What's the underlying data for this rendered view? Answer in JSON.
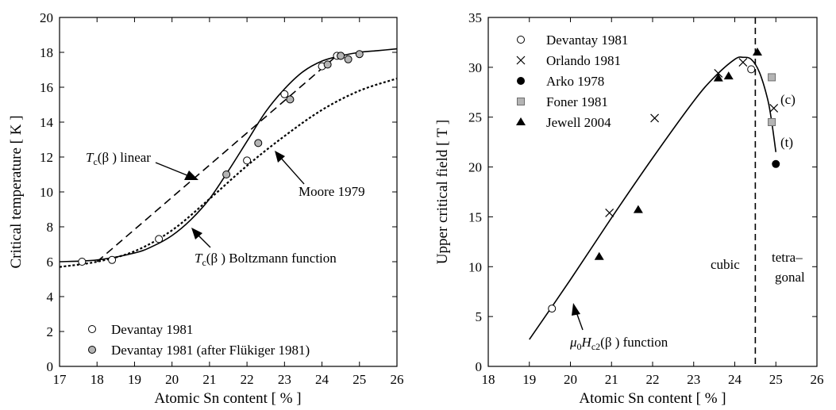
{
  "chart_data": [
    {
      "type": "scatter",
      "xlabel": "Atomic Sn content [ % ]",
      "ylabel": "Critical temperature [ K ]",
      "xlim": [
        17,
        26
      ],
      "ylim": [
        0,
        20
      ],
      "xticks": [
        "17",
        "18",
        "19",
        "20",
        "21",
        "22",
        "23",
        "24",
        "25",
        "26"
      ],
      "yticks": [
        "0",
        "2",
        "4",
        "6",
        "8",
        "10",
        "12",
        "14",
        "16",
        "18",
        "20"
      ],
      "legend_position": "bottom-left",
      "series": [
        {
          "name": "Devantay 1981",
          "marker": "open-circle",
          "x": [
            17.6,
            18.4,
            19.65,
            22.0,
            23.0,
            24.0,
            24.4,
            24.5
          ],
          "y": [
            6.0,
            6.1,
            7.3,
            11.8,
            15.6,
            17.2,
            17.8,
            17.8
          ]
        },
        {
          "name": "Devantay 1981 (after Flükiger 1981)",
          "marker": "gray-circle",
          "x": [
            21.45,
            22.3,
            23.15,
            24.15,
            24.5,
            24.7,
            25.0
          ],
          "y": [
            11.0,
            12.8,
            15.3,
            17.3,
            17.8,
            17.6,
            17.9
          ]
        }
      ],
      "curves": [
        {
          "label": "Tc(β) linear",
          "style": "dashed",
          "x": [
            18.0,
            24.5
          ],
          "y": [
            6.0,
            18.0
          ]
        },
        {
          "label": "Moore 1979",
          "style": "dotted",
          "x": [
            17.0,
            18.0,
            19.0,
            20.0,
            21.0,
            22.0,
            23.0,
            24.0,
            25.0,
            26.0
          ],
          "y": [
            5.7,
            6.0,
            6.6,
            7.8,
            9.6,
            11.5,
            13.2,
            14.7,
            15.8,
            16.5
          ]
        },
        {
          "label": "Tc(β) Boltzmann function",
          "style": "solid",
          "x": [
            17.0,
            18.0,
            19.0,
            19.5,
            20.0,
            20.5,
            21.0,
            21.5,
            22.0,
            22.5,
            23.0,
            23.5,
            24.0,
            24.5,
            25.0,
            25.5,
            26.0
          ],
          "y": [
            6.0,
            6.1,
            6.5,
            6.9,
            7.5,
            8.4,
            9.6,
            11.2,
            12.9,
            14.6,
            15.9,
            16.9,
            17.5,
            17.8,
            18.0,
            18.1,
            18.2
          ]
        }
      ],
      "annotations": [
        {
          "prefix": "T",
          "sub": "c",
          "suffix": "(β ) linear"
        },
        {
          "prefix": "",
          "sub": "",
          "suffix": "Moore 1979"
        },
        {
          "prefix": "T",
          "sub": "c",
          "suffix": "(β ) Boltzmann function"
        }
      ]
    },
    {
      "type": "scatter",
      "xlabel": "Atomic Sn content [ % ]",
      "ylabel": "Upper critical field [ T ]",
      "xlim": [
        18,
        26
      ],
      "ylim": [
        0,
        35
      ],
      "xticks": [
        "18",
        "19",
        "20",
        "21",
        "22",
        "23",
        "24",
        "25",
        "26"
      ],
      "yticks": [
        "0",
        "5",
        "10",
        "15",
        "20",
        "25",
        "30",
        "35"
      ],
      "legend_position": "top-left",
      "series": [
        {
          "name": "Devantay 1981",
          "marker": "open-circle",
          "x": [
            19.55,
            24.4
          ],
          "y": [
            5.8,
            29.8
          ]
        },
        {
          "name": "Orlando 1981",
          "marker": "cross",
          "x": [
            20.95,
            22.05,
            23.6,
            24.2,
            24.95
          ],
          "y": [
            15.4,
            24.9,
            29.4,
            30.5,
            25.9
          ]
        },
        {
          "name": "Arko 1978",
          "marker": "filled-circle",
          "x": [
            25.0
          ],
          "y": [
            20.3
          ]
        },
        {
          "name": "Foner 1981",
          "marker": "gray-square",
          "x": [
            24.9,
            24.9
          ],
          "y": [
            29.0,
            24.5
          ]
        },
        {
          "name": "Jewell 2004",
          "marker": "filled-triangle",
          "x": [
            20.7,
            21.65,
            23.6,
            23.85,
            24.55
          ],
          "y": [
            11.0,
            15.7,
            28.9,
            29.1,
            31.5
          ]
        }
      ],
      "curves": [
        {
          "label": "μ0Hc2(β) function",
          "style": "solid",
          "x": [
            19.0,
            20.0,
            21.0,
            22.0,
            23.0,
            23.5,
            24.0,
            24.2,
            24.4,
            24.6,
            24.8,
            24.9,
            25.0
          ],
          "y": [
            2.7,
            8.7,
            14.9,
            20.9,
            26.6,
            29.0,
            30.8,
            31.0,
            30.8,
            29.5,
            26.8,
            24.5,
            21.5
          ]
        }
      ],
      "divider_x": 24.5,
      "annotations": [
        {
          "text": "cubic"
        },
        {
          "text": "tetra–"
        },
        {
          "text": "gonal"
        },
        {
          "text": "(c)"
        },
        {
          "text": "(t)"
        },
        {
          "prefix": "μ",
          "sub": "0",
          "mid": "H",
          "sub2": "c2",
          "suffix": "(β ) function"
        }
      ]
    }
  ]
}
